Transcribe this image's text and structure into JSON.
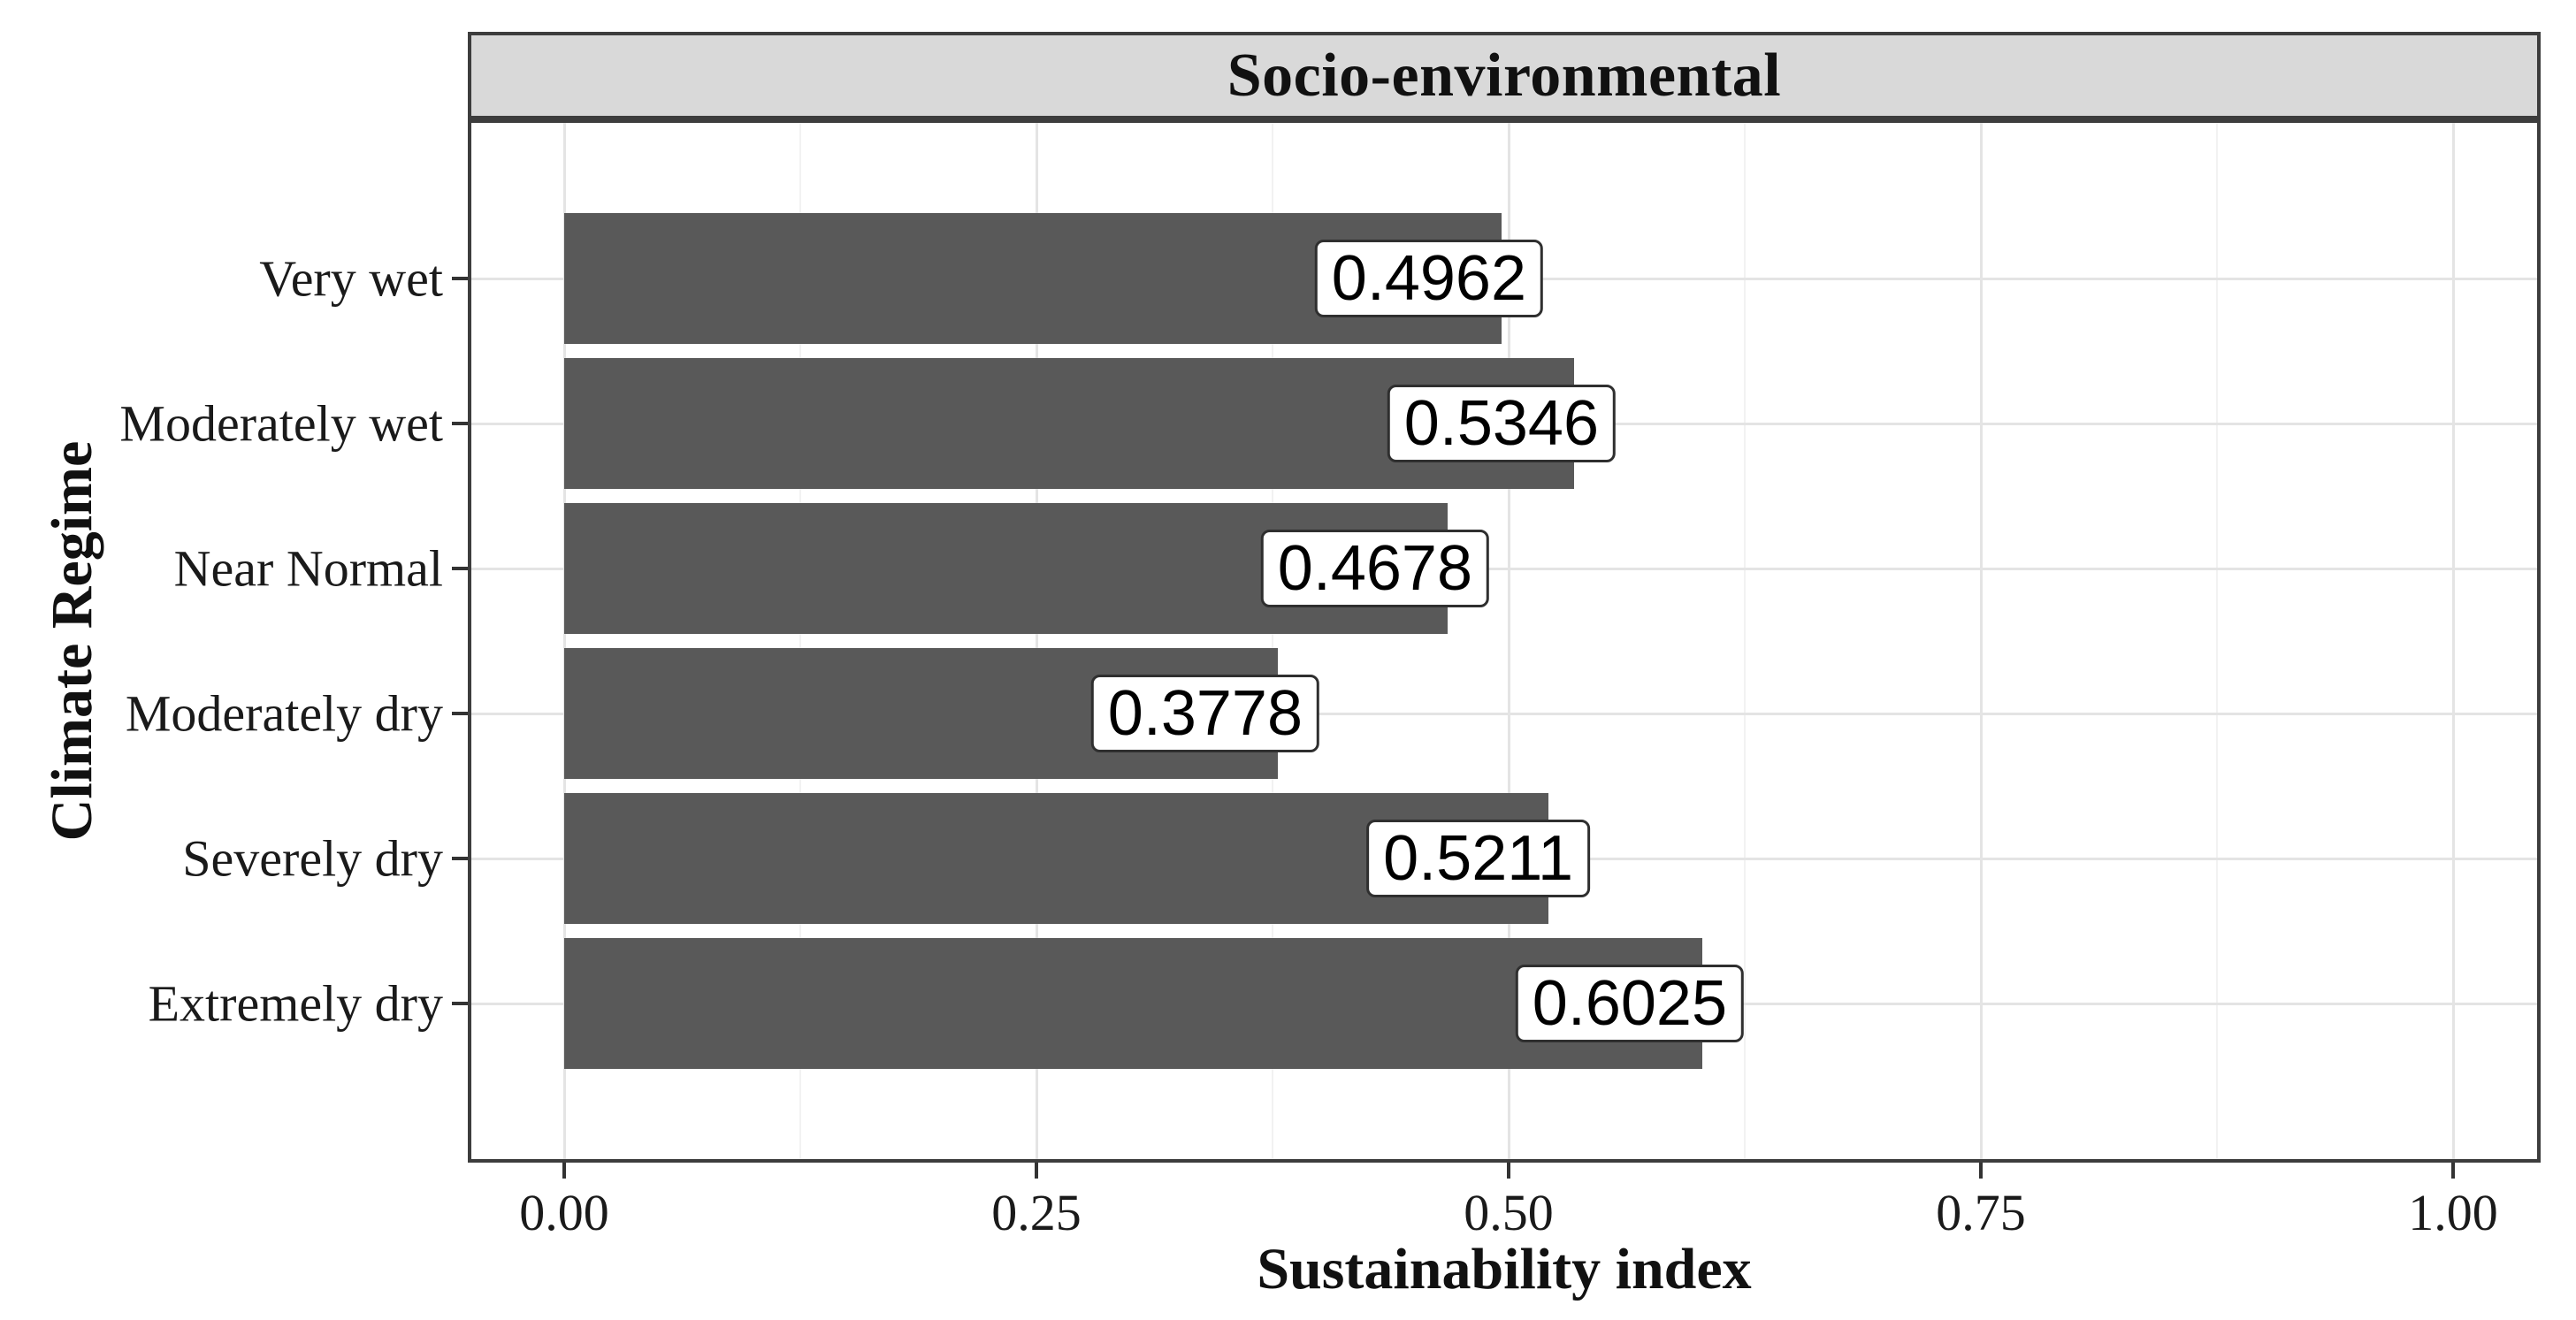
{
  "chart_data": {
    "type": "bar",
    "orientation": "horizontal",
    "facet_title": "Socio-environmental",
    "xlabel": "Sustainability index",
    "ylabel": "Climate Regime",
    "categories": [
      "Very wet",
      "Moderately wet",
      "Near Normal",
      "Moderately dry",
      "Severely dry",
      "Extremely dry"
    ],
    "values": [
      0.4962,
      0.5346,
      0.4678,
      0.3778,
      0.5211,
      0.6025
    ],
    "value_labels": [
      "0.4962",
      "0.5346",
      "0.4678",
      "0.3778",
      "0.5211",
      "0.6025"
    ],
    "x_ticks": {
      "values": [
        0,
        0.25,
        0.5,
        0.75,
        1.0
      ],
      "labels": [
        "0.00",
        "0.25",
        "0.50",
        "0.75",
        "1.00"
      ]
    },
    "x_minor_ticks": [
      0.125,
      0.375,
      0.625,
      0.875
    ],
    "xlim": [
      -0.051,
      1.046
    ],
    "ylim_slots": 6,
    "grid": "vertical major+minor, horizontal major at category centers",
    "legend": "none",
    "colors": {
      "bar": "#595959",
      "strip_background": "#d9d9d9",
      "panel_border": "#3d3d3d",
      "grid_major": "#e4e4e4",
      "grid_minor": "#f2f2f2",
      "tick": "#333333",
      "label_box_background": "#ffffff",
      "label_box_border": "#2f2f2f",
      "axis_text": "#1a1a1a"
    }
  }
}
